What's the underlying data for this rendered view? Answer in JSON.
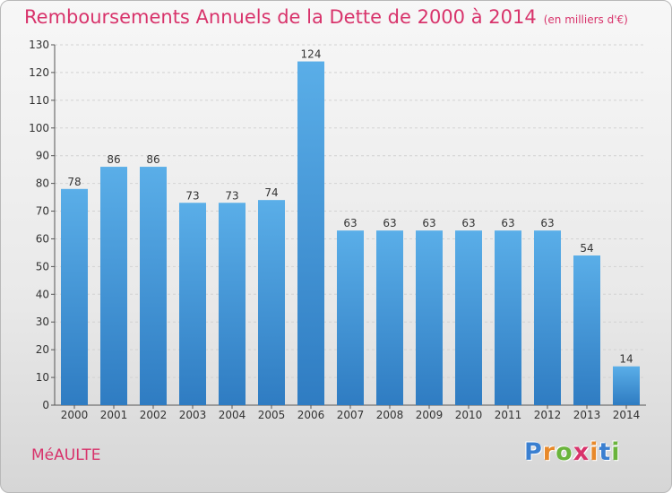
{
  "chart_data": {
    "type": "bar",
    "title": "Remboursements Annuels de la Dette de 2000 à 2014",
    "subtitle": "(en milliers d'€)",
    "categories": [
      "2000",
      "2001",
      "2002",
      "2003",
      "2004",
      "2005",
      "2006",
      "2007",
      "2008",
      "2009",
      "2010",
      "2011",
      "2012",
      "2013",
      "2014"
    ],
    "values": [
      78,
      86,
      86,
      73,
      73,
      74,
      124,
      63,
      63,
      63,
      63,
      63,
      63,
      54,
      14
    ],
    "ylim": [
      0,
      130
    ],
    "yticks": [
      0,
      10,
      20,
      30,
      40,
      50,
      60,
      70,
      80,
      90,
      100,
      110,
      120,
      130
    ],
    "grid": true,
    "bar_color_top": "#5aaee8",
    "bar_color_bottom": "#2f7cc2",
    "title_color": "#d8336b"
  },
  "footer": {
    "commune": "MéAULTE"
  },
  "logo": {
    "letters": [
      "P",
      "r",
      "o",
      "x",
      "i",
      "t",
      "i"
    ],
    "colors": [
      "#3a7fd0",
      "#e8892a",
      "#6ab43c",
      "#d8336b",
      "#e8892a",
      "#3a7fd0",
      "#6ab43c"
    ]
  }
}
